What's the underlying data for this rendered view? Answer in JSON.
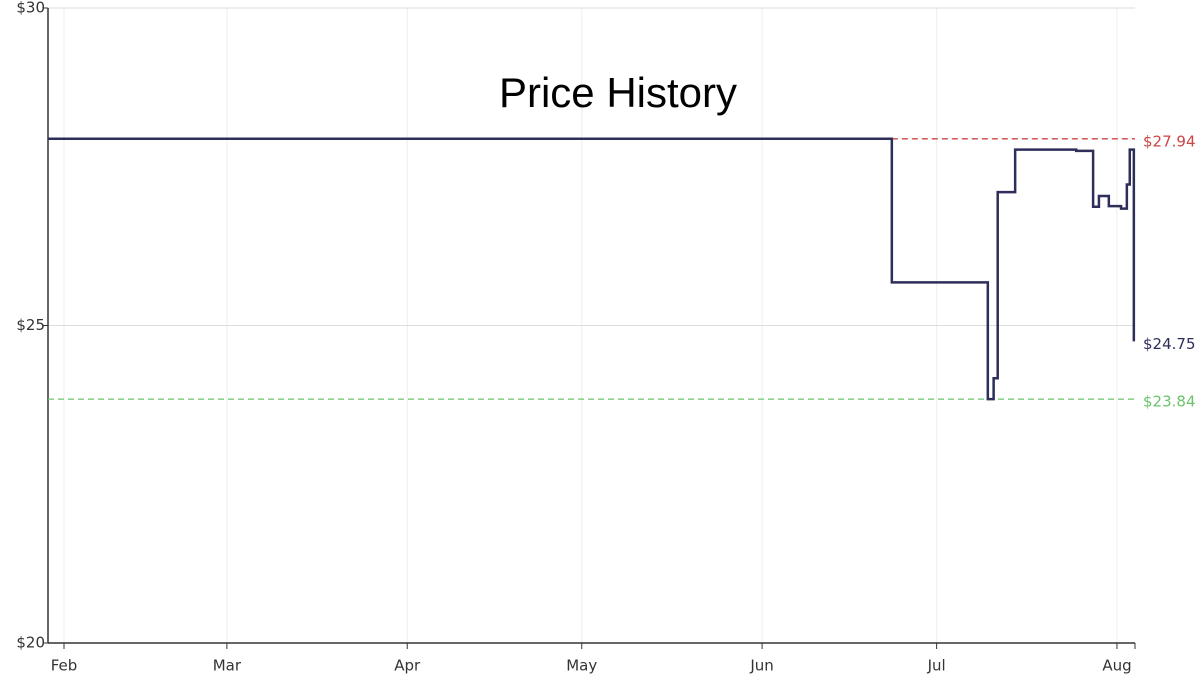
{
  "chart_data": {
    "type": "line",
    "title": "Price History",
    "xlim": [
      -2.75,
      184.1
    ],
    "xticks": [
      {
        "value": 0,
        "label": "Feb"
      },
      {
        "value": 28,
        "label": "Mar"
      },
      {
        "value": 59,
        "label": "Apr"
      },
      {
        "value": 89,
        "label": "May"
      },
      {
        "value": 120,
        "label": "Jun"
      },
      {
        "value": 150,
        "label": "Jul"
      },
      {
        "value": 181,
        "label": "Aug"
      }
    ],
    "ylim": [
      20,
      30
    ],
    "yticks": [
      {
        "value": 20,
        "label": "$20"
      },
      {
        "value": 25,
        "label": "$25"
      },
      {
        "value": 30,
        "label": "$30"
      }
    ],
    "grid": true,
    "series": [
      {
        "color": "#2d2e5a",
        "x": [
          -2.75,
          142.3,
          142.3,
          158.8,
          158.8,
          159.8,
          159.8,
          160.5,
          160.5,
          163.5,
          163.5,
          174,
          174,
          176.9,
          176.9,
          177.9,
          177.9,
          179.6,
          179.6,
          181.7,
          181.7,
          182.7,
          182.7,
          183.2,
          183.2,
          183.9,
          183.9
        ],
        "values": [
          27.94,
          27.94,
          25.68,
          25.68,
          23.84,
          23.84,
          24.17,
          24.17,
          27.1,
          27.1,
          27.77,
          27.77,
          27.75,
          27.75,
          26.87,
          26.87,
          27.04,
          27.04,
          26.88,
          26.88,
          26.84,
          26.84,
          27.22,
          27.22,
          27.77,
          27.77,
          24.75
        ],
        "last_label": {
          "value": 24.75,
          "label": "$24.75"
        }
      }
    ],
    "reference_lines": [
      {
        "value": 27.94,
        "label": "$27.94",
        "color": "#cc4444",
        "start": 142.3
      },
      {
        "value": 23.84,
        "label": "$23.84",
        "color": "#6cc36c",
        "start": -2.75
      }
    ]
  }
}
